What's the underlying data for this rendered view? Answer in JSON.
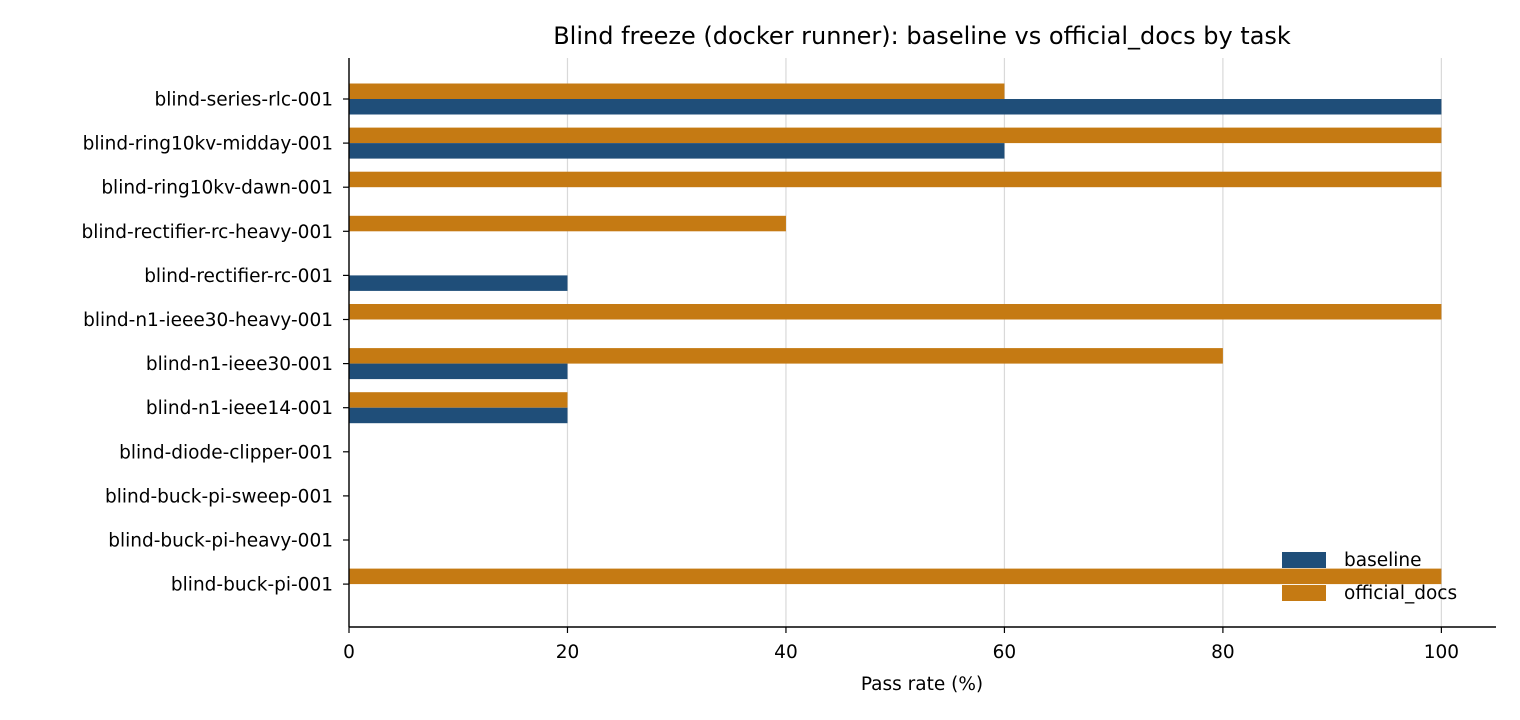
{
  "chart_data": {
    "type": "bar",
    "orientation": "horizontal",
    "title": "Blind freeze (docker runner): baseline vs official_docs by task",
    "xlabel": "Pass rate (%)",
    "ylabel": "",
    "xlim": [
      0,
      105
    ],
    "xticks": [
      0,
      20,
      40,
      60,
      80,
      100
    ],
    "xgrid": true,
    "legend_position": "bottom-right",
    "categories": [
      "blind-series-rlc-001",
      "blind-ring10kv-midday-001",
      "blind-ring10kv-dawn-001",
      "blind-rectifier-rc-heavy-001",
      "blind-rectifier-rc-001",
      "blind-n1-ieee30-heavy-001",
      "blind-n1-ieee30-001",
      "blind-n1-ieee14-001",
      "blind-diode-clipper-001",
      "blind-buck-pi-sweep-001",
      "blind-buck-pi-heavy-001",
      "blind-buck-pi-001"
    ],
    "series": [
      {
        "name": "baseline",
        "color": "#1f4e79",
        "values": [
          100,
          60,
          0,
          0,
          20,
          0,
          20,
          20,
          0,
          0,
          0,
          0
        ]
      },
      {
        "name": "official_docs",
        "color": "#c57a13",
        "values": [
          60,
          100,
          100,
          40,
          0,
          100,
          80,
          20,
          0,
          0,
          0,
          100
        ]
      }
    ]
  }
}
